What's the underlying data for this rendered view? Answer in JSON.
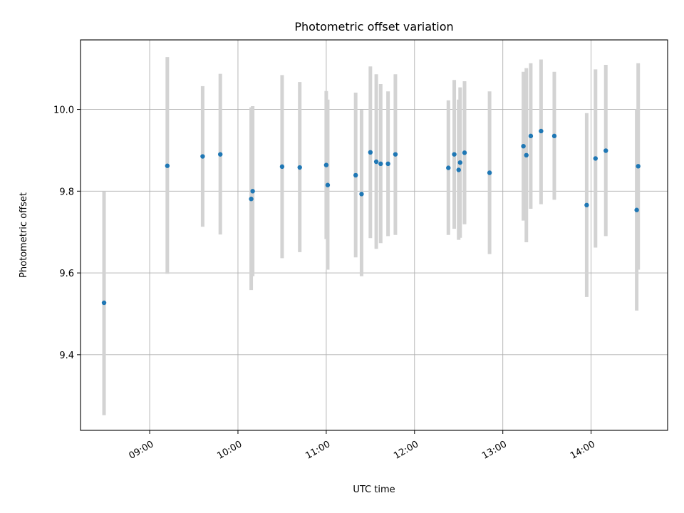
{
  "chart_data": {
    "type": "scatter",
    "title": "Photometric offset variation",
    "xlabel": "UTC time",
    "ylabel": "Photometric offset",
    "x_ticks": [
      "09:00",
      "10:00",
      "11:00",
      "12:00",
      "13:00",
      "14:00"
    ],
    "y_ticks": [
      "9.4",
      "9.6",
      "9.8",
      "10.0"
    ],
    "xlim": [
      "08:13",
      "14:52"
    ],
    "ylim": [
      9.215,
      10.17
    ],
    "grid": true,
    "marker_color": "#1f77b4",
    "errorbar_color": "#d3d3d3",
    "points": [
      {
        "x": "08:29",
        "y": 9.527,
        "err_low": 9.252,
        "err_high": 9.8
      },
      {
        "x": "09:12",
        "y": 9.862,
        "err_low": 9.598,
        "err_high": 10.128
      },
      {
        "x": "09:36",
        "y": 9.885,
        "err_low": 9.713,
        "err_high": 10.057
      },
      {
        "x": "09:48",
        "y": 9.89,
        "err_low": 9.694,
        "err_high": 10.087
      },
      {
        "x": "10:09",
        "y": 9.781,
        "err_low": 9.558,
        "err_high": 10.005
      },
      {
        "x": "10:10",
        "y": 9.8,
        "err_low": 9.592,
        "err_high": 10.008
      },
      {
        "x": "10:30",
        "y": 9.86,
        "err_low": 9.636,
        "err_high": 10.084
      },
      {
        "x": "10:42",
        "y": 9.858,
        "err_low": 9.651,
        "err_high": 10.067
      },
      {
        "x": "11:00",
        "y": 9.864,
        "err_low": 9.683,
        "err_high": 10.045
      },
      {
        "x": "11:01",
        "y": 9.815,
        "err_low": 9.608,
        "err_high": 10.024
      },
      {
        "x": "11:20",
        "y": 9.839,
        "err_low": 9.638,
        "err_high": 10.041
      },
      {
        "x": "11:24",
        "y": 9.793,
        "err_low": 9.592,
        "err_high": 9.999
      },
      {
        "x": "11:30",
        "y": 9.895,
        "err_low": 9.685,
        "err_high": 10.105
      },
      {
        "x": "11:34",
        "y": 9.872,
        "err_low": 9.659,
        "err_high": 10.086
      },
      {
        "x": "11:37",
        "y": 9.867,
        "err_low": 9.673,
        "err_high": 10.062
      },
      {
        "x": "11:42",
        "y": 9.867,
        "err_low": 9.69,
        "err_high": 10.044
      },
      {
        "x": "11:47",
        "y": 9.89,
        "err_low": 9.693,
        "err_high": 10.086
      },
      {
        "x": "12:23",
        "y": 9.857,
        "err_low": 9.693,
        "err_high": 10.022
      },
      {
        "x": "12:27",
        "y": 9.89,
        "err_low": 9.708,
        "err_high": 10.072
      },
      {
        "x": "12:30",
        "y": 9.852,
        "err_low": 9.681,
        "err_high": 10.024
      },
      {
        "x": "12:31",
        "y": 9.87,
        "err_low": 9.686,
        "err_high": 10.054
      },
      {
        "x": "12:34",
        "y": 9.894,
        "err_low": 9.719,
        "err_high": 10.069
      },
      {
        "x": "12:51",
        "y": 9.845,
        "err_low": 9.646,
        "err_high": 10.044
      },
      {
        "x": "13:14",
        "y": 9.91,
        "err_low": 9.728,
        "err_high": 10.092
      },
      {
        "x": "13:16",
        "y": 9.888,
        "err_low": 9.675,
        "err_high": 10.101
      },
      {
        "x": "13:19",
        "y": 9.935,
        "err_low": 9.757,
        "err_high": 10.113
      },
      {
        "x": "13:26",
        "y": 9.947,
        "err_low": 9.768,
        "err_high": 10.122
      },
      {
        "x": "13:35",
        "y": 9.935,
        "err_low": 9.779,
        "err_high": 10.092
      },
      {
        "x": "13:57",
        "y": 9.766,
        "err_low": 9.541,
        "err_high": 9.991
      },
      {
        "x": "14:03",
        "y": 9.88,
        "err_low": 9.662,
        "err_high": 10.098
      },
      {
        "x": "14:10",
        "y": 9.899,
        "err_low": 9.69,
        "err_high": 10.109
      },
      {
        "x": "14:31",
        "y": 9.754,
        "err_low": 9.508,
        "err_high": 10.0
      },
      {
        "x": "14:32",
        "y": 9.861,
        "err_low": 9.608,
        "err_high": 10.113
      }
    ]
  }
}
